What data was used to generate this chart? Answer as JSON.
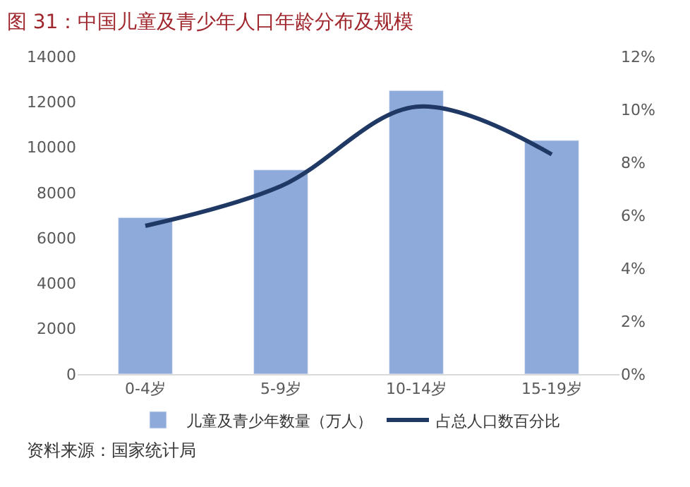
{
  "chart_data": {
    "type": "bar",
    "title": "图 31：中国儿童及青少年人口年龄分布及规模",
    "categories": [
      "0-4岁",
      "5-9岁",
      "10-14岁",
      "15-19岁"
    ],
    "series": [
      {
        "name": "儿童及青少年数量（万人）",
        "color": "#8eaadb",
        "values": [
          6900,
          9000,
          12500,
          10300
        ]
      },
      {
        "name": "占总人口数百分比",
        "type": "line",
        "axis": "y2",
        "color": "#1f3864",
        "values": [
          5.6,
          7.1,
          10.1,
          8.3
        ]
      }
    ],
    "ylim": [
      0,
      14000
    ],
    "yticks": [
      0,
      2000,
      4000,
      6000,
      8000,
      10000,
      12000,
      14000
    ],
    "y2lim": [
      0,
      12
    ],
    "y2ticks": [
      {
        "value": 0,
        "label": "0%"
      },
      {
        "value": 2,
        "label": "2%"
      },
      {
        "value": 4,
        "label": "4%"
      },
      {
        "value": 6,
        "label": "6%"
      },
      {
        "value": 8,
        "label": "8%"
      },
      {
        "value": 10,
        "label": "10%"
      },
      {
        "value": 12,
        "label": "12%"
      }
    ],
    "grid": false,
    "legend": "bottom",
    "marker": "none",
    "line_style": "solid",
    "annotations": [
      "资料来源：国家统计局"
    ]
  }
}
